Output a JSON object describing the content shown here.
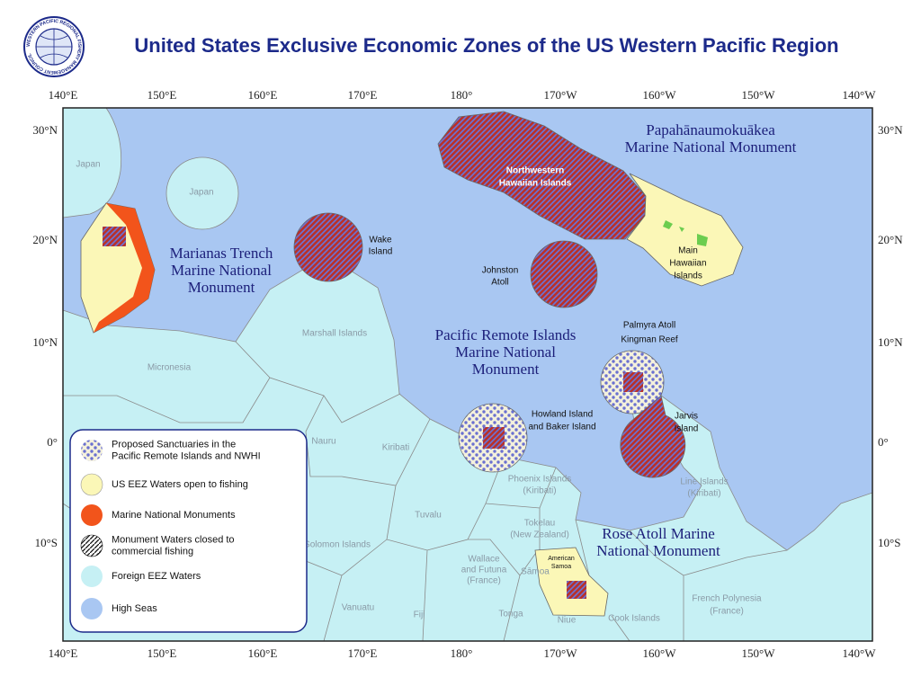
{
  "header": {
    "logo_text": "WESTERN PACIFIC REGIONAL FISHERY MANAGEMENT COUNCIL",
    "title": "United States Exclusive Economic Zones of the US Western Pacific Region"
  },
  "map": {
    "longitude_labels": [
      "140°E",
      "150°E",
      "160°E",
      "170°E",
      "180°",
      "170°W",
      "160°W",
      "150°W",
      "140°W"
    ],
    "latitude_labels": [
      "30°N",
      "20°N",
      "10°N",
      "0°",
      "10°S"
    ],
    "labels": [
      {
        "lines": [
          "Papahānaumokuākea",
          "Marine National Monument"
        ]
      },
      {
        "lines": [
          "Marianas Trench",
          "Marine National",
          "Monument"
        ]
      },
      {
        "lines": [
          "Pacific Remote Islands",
          "Marine National",
          "Monument"
        ]
      },
      {
        "lines": [
          "Rose Atoll Marine",
          "National Monument"
        ]
      },
      {
        "lines": [
          "Northwestern",
          "Hawaiian Islands"
        ]
      },
      {
        "lines": [
          "Wake",
          "Island"
        ]
      },
      {
        "lines": [
          "Johnston",
          "Atoll"
        ]
      },
      {
        "lines": [
          "Main",
          "Hawaiian",
          "Islands"
        ]
      },
      {
        "lines": [
          "Palmyra Atoll",
          "Kingman Reef"
        ]
      },
      {
        "lines": [
          "Howland Island",
          "and Baker Island"
        ]
      },
      {
        "lines": [
          "Jarvis",
          "Island"
        ]
      },
      {
        "lines": [
          "American",
          "Samoa"
        ]
      },
      {
        "lines": [
          "Japan"
        ]
      },
      {
        "lines": [
          "Japan"
        ]
      },
      {
        "lines": [
          "Marshall Islands"
        ]
      },
      {
        "lines": [
          "Micronesia"
        ]
      },
      {
        "lines": [
          "Nauru"
        ]
      },
      {
        "lines": [
          "Kiribati"
        ]
      },
      {
        "lines": [
          "Phoenix Islands",
          "(Kiribati)"
        ]
      },
      {
        "lines": [
          "Tuvalu"
        ]
      },
      {
        "lines": [
          "Tokelau",
          "(New Zealand)"
        ]
      },
      {
        "lines": [
          "Line Islands",
          "(Kiribati)"
        ]
      },
      {
        "lines": [
          "Solomon Islands"
        ]
      },
      {
        "lines": [
          "Wallace",
          "and Futuna",
          "(France)"
        ]
      },
      {
        "lines": [
          "Sāmoa"
        ]
      },
      {
        "lines": [
          "Vanuatu"
        ]
      },
      {
        "lines": [
          "Fiji"
        ]
      },
      {
        "lines": [
          "Tonga"
        ]
      },
      {
        "lines": [
          "Niue"
        ]
      },
      {
        "lines": [
          "Cook Islands"
        ]
      },
      {
        "lines": [
          "French Polynesia",
          "(France)"
        ]
      }
    ]
  },
  "legend": {
    "items": [
      {
        "lines": [
          "Proposed Sanctuaries in the",
          "Pacific Remote Islands and NWHI"
        ]
      },
      {
        "lines": [
          "US EEZ Waters open to fishing"
        ]
      },
      {
        "lines": [
          "Marine National Monuments"
        ]
      },
      {
        "lines": [
          "Monument Waters closed to",
          "commercial fishing"
        ]
      },
      {
        "lines": [
          "Foreign EEZ Waters"
        ]
      },
      {
        "lines": [
          "High Seas"
        ]
      }
    ]
  }
}
